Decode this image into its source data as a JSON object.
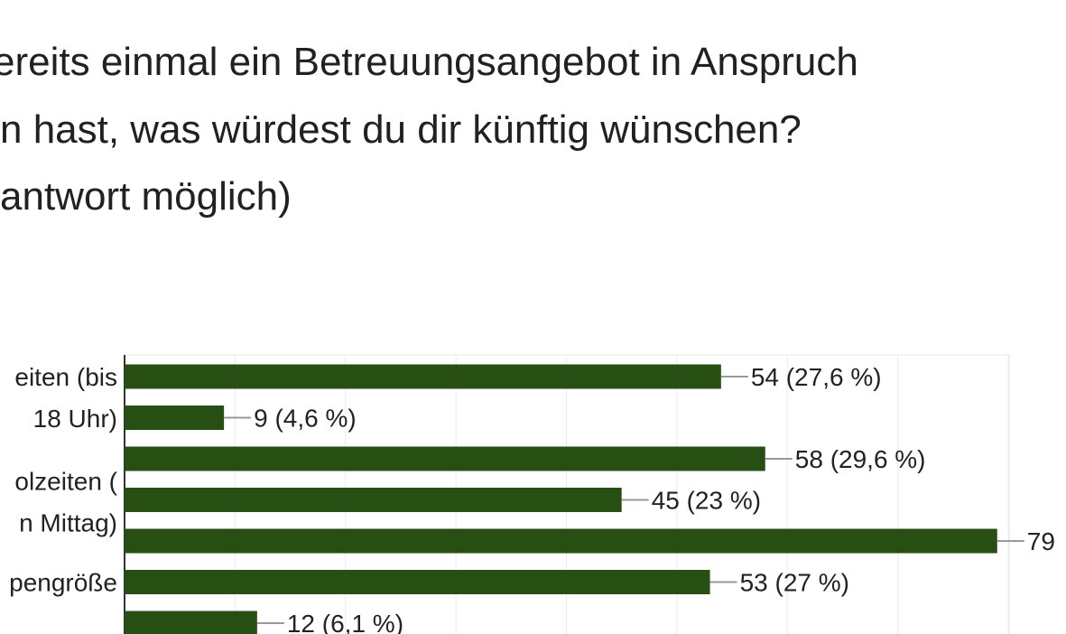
{
  "chart_data": {
    "type": "bar",
    "orientation": "horizontal",
    "title_lines": [
      "ereits einmal ein Betreuungsangebot in Anspruch",
      "n hast, was würdest du dir künftig wünschen?",
      "antwort möglich)"
    ],
    "categories": [
      [
        "eiten (bis",
        "18 Uhr)"
      ],
      null,
      null,
      [
        "olzeiten (",
        "n Mittag)"
      ],
      null,
      [
        "pengröße"
      ],
      null
    ],
    "values": [
      54,
      9,
      58,
      45,
      79,
      53,
      12
    ],
    "value_labels": [
      "54 (27,6 %)",
      "9 (4,6 %)",
      "58 (29,6 %)",
      "45 (23 %)",
      "79",
      "53 (27 %)",
      "12 (6,1 %)"
    ],
    "color": "#274e13",
    "xlim": [
      0,
      80
    ],
    "xticks": [
      0,
      10,
      20,
      30,
      40,
      50,
      60,
      70,
      80
    ],
    "grid": true
  }
}
